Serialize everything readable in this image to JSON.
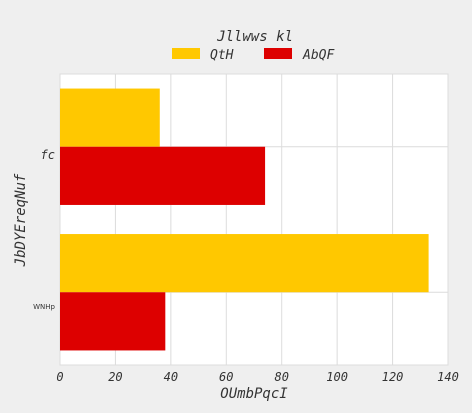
{
  "chart_data": {
    "type": "bar",
    "orientation": "horizontal",
    "legend_title": "Jllwws kl",
    "legend_position": "top-center",
    "categories": [
      "fc",
      "WNHp"
    ],
    "series": [
      {
        "name": "QtH",
        "color": "#ffc800",
        "values": [
          36,
          133
        ]
      },
      {
        "name": "AbQF",
        "color": "#dd0000",
        "values": [
          74,
          38
        ]
      }
    ],
    "xlabel": "OUmbPqcI",
    "ylabel": "JbDYEreqNuf",
    "xlim": [
      0,
      140
    ],
    "xticks": [
      "0",
      "20",
      "40",
      "60",
      "80",
      "100",
      "120",
      "140"
    ],
    "grid": true
  }
}
